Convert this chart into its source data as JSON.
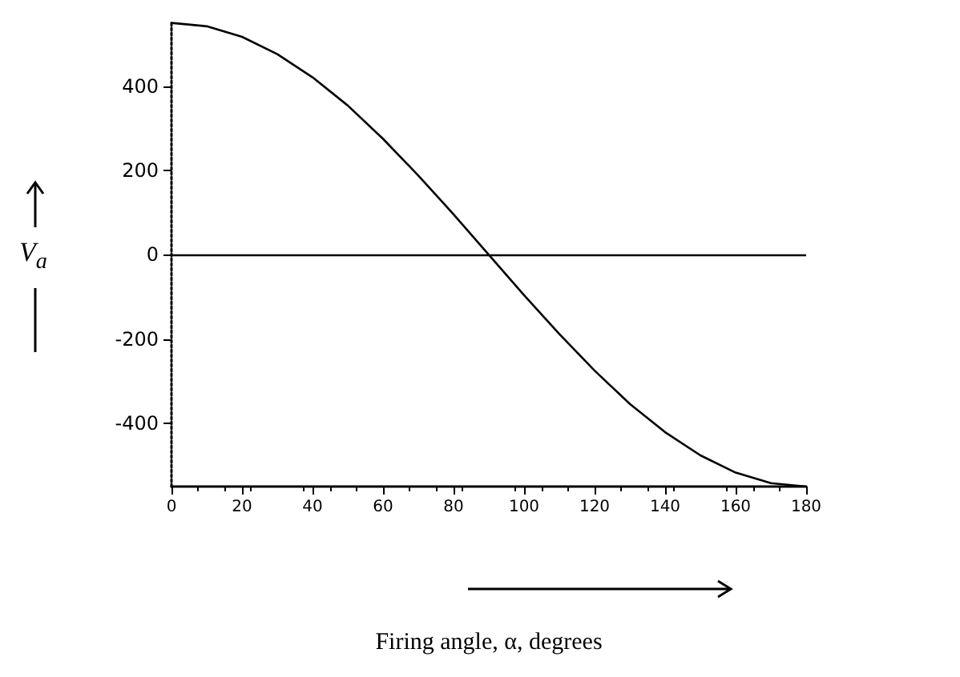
{
  "chart_data": {
    "type": "line",
    "xlabel": "Firing angle, α, degrees",
    "ylabel": "V$_{a}$",
    "x": [
      0,
      10,
      20,
      30,
      40,
      50,
      60,
      70,
      80,
      90,
      100,
      110,
      120,
      130,
      140,
      150,
      160,
      170,
      180
    ],
    "series": [
      {
        "color": "#000000",
        "values": [
          550,
          542,
          517,
          476,
          421,
          354,
          275,
          188,
          96,
          0,
          -96,
          -188,
          -275,
          -354,
          -421,
          -476,
          -517,
          -542,
          -550
        ]
      }
    ],
    "xlim": [
      0,
      180
    ],
    "xticks": [
      0,
      20,
      40,
      60,
      80,
      100,
      120,
      140,
      160,
      180
    ],
    "ylim": [
      -550,
      555
    ],
    "yticks": [
      -400,
      -200,
      0,
      200,
      400
    ],
    "ref_lines": [
      {
        "axis": "y",
        "value": 0,
        "color": "#000000"
      }
    ],
    "grid": false,
    "marker": "none",
    "line_style": "solid"
  }
}
